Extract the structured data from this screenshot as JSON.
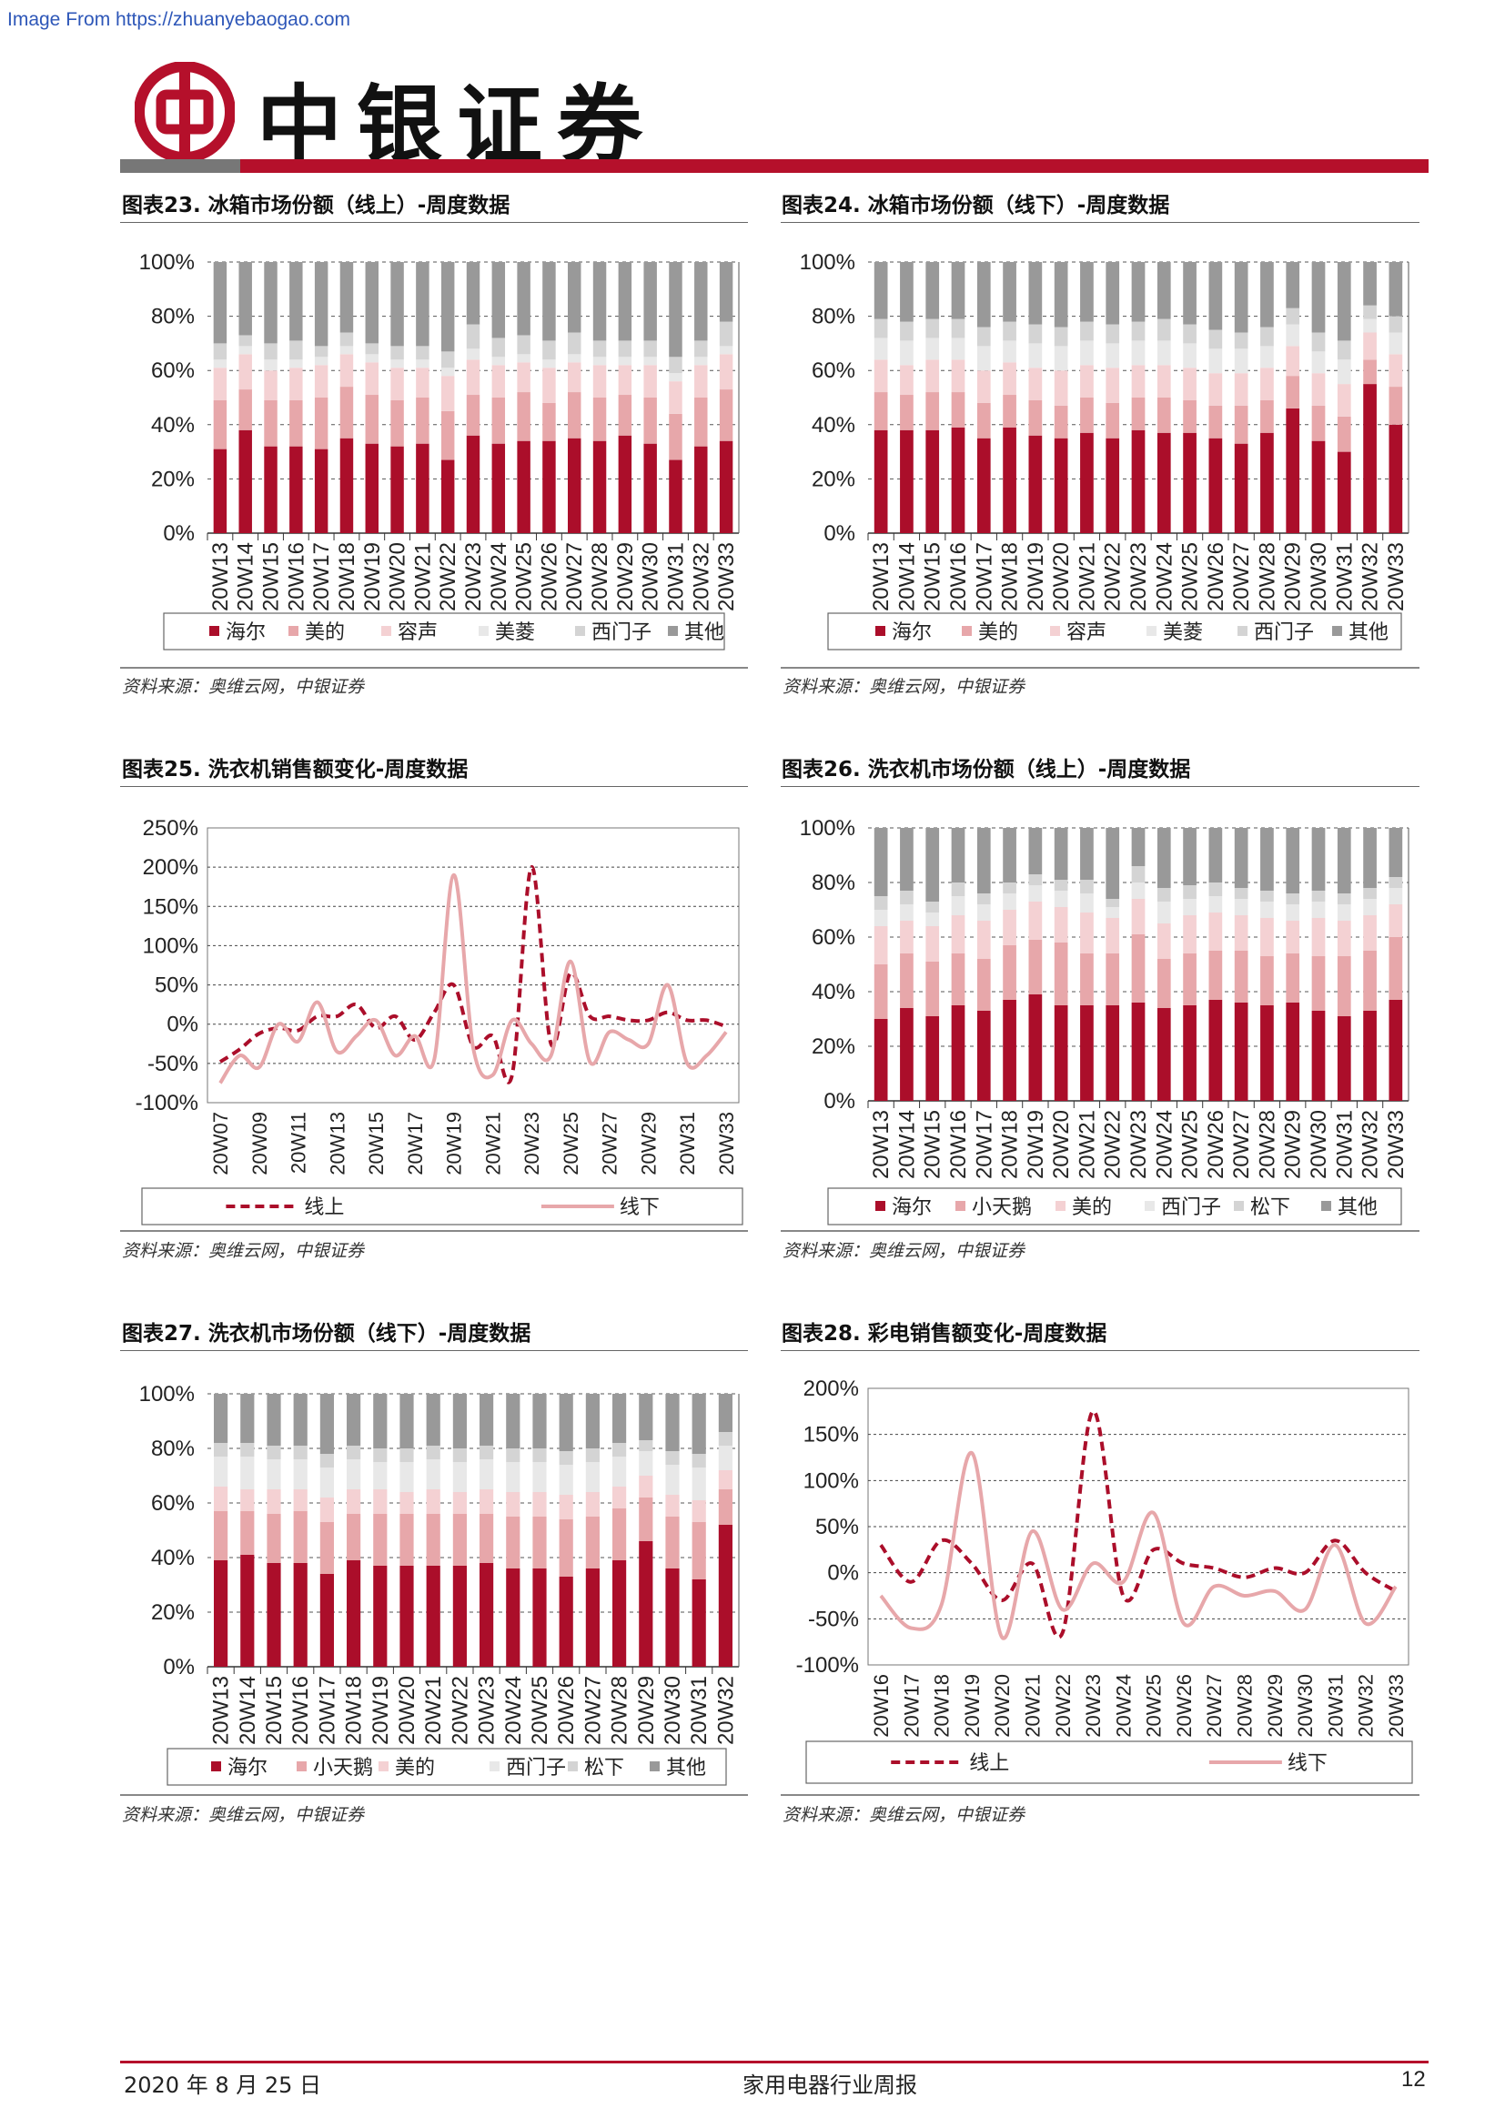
{
  "header": {
    "source_note": "Image From https://zhuanyebaogao.com",
    "brand": "中银证券"
  },
  "footer": {
    "date": "2020 年 8 月 25 日",
    "report": "家用电器行业周报",
    "page": "12"
  },
  "colors": {
    "dark_red": "#ab0e2a",
    "rose": "#e7a7aa",
    "pale_pink": "#f4d1d3",
    "light_gray": "#e8e8e8",
    "mid_gray": "#d4d4d4",
    "dark_gray": "#999999",
    "brand_red": "#b5102b"
  },
  "charts": [
    {
      "title": "图表23. 冰箱市场份额（线上）-周度数据",
      "source": "资料来源：奥维云网，中银证券",
      "chart_data": {
        "type": "bar",
        "stacked": true,
        "categories": [
          "20W13",
          "20W14",
          "20W15",
          "20W16",
          "20W17",
          "20W18",
          "20W19",
          "20W20",
          "20W21",
          "20W22",
          "20W23",
          "20W24",
          "20W25",
          "20W26",
          "20W27",
          "20W28",
          "20W29",
          "20W30",
          "20W31",
          "20W32",
          "20W33"
        ],
        "yticks": [
          "0%",
          "20%",
          "40%",
          "60%",
          "80%",
          "100%"
        ],
        "ylim": [
          0,
          100
        ],
        "series": [
          {
            "name": "海尔",
            "color": "#ab0e2a",
            "values": [
              31,
              38,
              32,
              32,
              31,
              35,
              33,
              32,
              33,
              27,
              36,
              33,
              34,
              34,
              35,
              34,
              36,
              33,
              27,
              32,
              34
            ]
          },
          {
            "name": "美的",
            "color": "#e7a7aa",
            "values": [
              18,
              15,
              17,
              17,
              19,
              19,
              18,
              17,
              17,
              18,
              15,
              17,
              18,
              14,
              17,
              16,
              15,
              17,
              17,
              18,
              19
            ]
          },
          {
            "name": "容声",
            "color": "#f4d1d3",
            "values": [
              12,
              13,
              11,
              12,
              12,
              12,
              12,
              12,
              11,
              13,
              13,
              12,
              11,
              13,
              11,
              12,
              11,
              12,
              12,
              12,
              13
            ]
          },
          {
            "name": "美菱",
            "color": "#e8e8e8",
            "values": [
              3,
              3,
              4,
              3,
              3,
              3,
              3,
              3,
              3,
              3,
              4,
              3,
              3,
              3,
              3,
              3,
              3,
              3,
              3,
              3,
              3
            ]
          },
          {
            "name": "西门子",
            "color": "#d4d4d4",
            "values": [
              6,
              4,
              6,
              7,
              4,
              5,
              4,
              5,
              5,
              6,
              9,
              7,
              7,
              7,
              8,
              6,
              6,
              6,
              6,
              6,
              9
            ]
          },
          {
            "name": "其他",
            "color": "#999999",
            "values": [
              30,
              27,
              30,
              29,
              31,
              26,
              30,
              31,
              31,
              33,
              23,
              28,
              27,
              29,
              26,
              29,
              29,
              29,
              35,
              29,
              22
            ]
          }
        ]
      }
    },
    {
      "title": "图表24. 冰箱市场份额（线下）-周度数据",
      "source": "资料来源：奥维云网，中银证券",
      "chart_data": {
        "type": "bar",
        "stacked": true,
        "categories": [
          "20W13",
          "20W14",
          "20W15",
          "20W16",
          "20W17",
          "20W18",
          "20W19",
          "20W20",
          "20W21",
          "20W22",
          "20W23",
          "20W24",
          "20W25",
          "20W26",
          "20W27",
          "20W28",
          "20W29",
          "20W30",
          "20W31",
          "20W32",
          "20W33"
        ],
        "yticks": [
          "0%",
          "20%",
          "40%",
          "60%",
          "80%",
          "100%"
        ],
        "ylim": [
          0,
          100
        ],
        "series": [
          {
            "name": "海尔",
            "color": "#ab0e2a",
            "values": [
              38,
              38,
              38,
              39,
              35,
              39,
              36,
              35,
              37,
              35,
              38,
              37,
              37,
              35,
              33,
              37,
              46,
              34,
              30,
              55,
              40
            ]
          },
          {
            "name": "美的",
            "color": "#e7a7aa",
            "values": [
              14,
              13,
              14,
              13,
              13,
              12,
              13,
              12,
              13,
              13,
              12,
              13,
              12,
              12,
              14,
              12,
              12,
              13,
              13,
              9,
              14
            ]
          },
          {
            "name": "容声",
            "color": "#f4d1d3",
            "values": [
              12,
              11,
              12,
              12,
              12,
              12,
              12,
              13,
              12,
              13,
              12,
              12,
              12,
              12,
              12,
              12,
              11,
              12,
              12,
              10,
              12
            ]
          },
          {
            "name": "美菱",
            "color": "#e8e8e8",
            "values": [
              8,
              9,
              8,
              8,
              9,
              8,
              9,
              9,
              9,
              9,
              9,
              9,
              9,
              9,
              9,
              8,
              8,
              8,
              9,
              5,
              8
            ]
          },
          {
            "name": "西门子",
            "color": "#d4d4d4",
            "values": [
              7,
              7,
              7,
              7,
              7,
              7,
              7,
              7,
              7,
              7,
              7,
              8,
              7,
              7,
              6,
              7,
              6,
              7,
              7,
              5,
              6
            ]
          },
          {
            "name": "其他",
            "color": "#999999",
            "values": [
              21,
              22,
              21,
              21,
              24,
              22,
              23,
              24,
              22,
              23,
              22,
              21,
              23,
              25,
              26,
              24,
              17,
              26,
              29,
              16,
              20
            ]
          }
        ]
      }
    },
    {
      "title": "图表25. 洗衣机销售额变化-周度数据",
      "source": "资料来源：奥维云网，中银证券",
      "chart_data": {
        "type": "line",
        "x": [
          "20W07",
          "20W08",
          "20W09",
          "20W10",
          "20W11",
          "20W12",
          "20W13",
          "20W14",
          "20W15",
          "20W16",
          "20W17",
          "20W18",
          "20W19",
          "20W20",
          "20W21",
          "20W22",
          "20W23",
          "20W24",
          "20W25",
          "20W26",
          "20W27",
          "20W28",
          "20W29",
          "20W30",
          "20W31",
          "20W32",
          "20W33"
        ],
        "xticks": [
          "20W07",
          "20W09",
          "20W11",
          "20W13",
          "20W15",
          "20W17",
          "20W19",
          "20W21",
          "20W23",
          "20W25",
          "20W27",
          "20W29",
          "20W31",
          "20W33"
        ],
        "yticks": [
          "-100%",
          "-50%",
          "0%",
          "50%",
          "100%",
          "150%",
          "200%",
          "250%"
        ],
        "ylim": [
          -100,
          250
        ],
        "series": [
          {
            "name": "线上",
            "style": "dashed",
            "color": "#ab0e2a",
            "values": [
              -48,
              -32,
              -12,
              -5,
              -8,
              10,
              10,
              25,
              -5,
              10,
              -20,
              15,
              50,
              -28,
              -15,
              -65,
              200,
              -25,
              65,
              10,
              10,
              5,
              5,
              15,
              5,
              5,
              -3
            ]
          },
          {
            "name": "线下",
            "style": "solid",
            "color": "#e7a7aa",
            "values": [
              -75,
              -40,
              -55,
              0,
              -22,
              28,
              -35,
              -15,
              5,
              -40,
              -15,
              -45,
              190,
              -30,
              -65,
              5,
              -25,
              -40,
              80,
              -48,
              -10,
              -20,
              -25,
              50,
              -50,
              -40,
              -10
            ]
          }
        ]
      }
    },
    {
      "title": "图表26. 洗衣机市场份额（线上）-周度数据",
      "source": "资料来源：奥维云网，中银证券",
      "chart_data": {
        "type": "bar",
        "stacked": true,
        "categories": [
          "20W13",
          "20W14",
          "20W15",
          "20W16",
          "20W17",
          "20W18",
          "20W19",
          "20W20",
          "20W21",
          "20W22",
          "20W23",
          "20W24",
          "20W25",
          "20W26",
          "20W27",
          "20W28",
          "20W29",
          "20W30",
          "20W31",
          "20W32",
          "20W33"
        ],
        "yticks": [
          "0%",
          "20%",
          "40%",
          "60%",
          "80%",
          "100%"
        ],
        "ylim": [
          0,
          100
        ],
        "series": [
          {
            "name": "海尔",
            "color": "#ab0e2a",
            "values": [
              30,
              34,
              31,
              35,
              33,
              37,
              39,
              35,
              35,
              35,
              36,
              34,
              35,
              37,
              36,
              35,
              36,
              33,
              31,
              33,
              37
            ]
          },
          {
            "name": "小天鹅",
            "color": "#e7a7aa",
            "values": [
              20,
              20,
              20,
              19,
              19,
              20,
              20,
              23,
              19,
              19,
              25,
              18,
              19,
              18,
              19,
              18,
              18,
              20,
              22,
              22,
              23
            ]
          },
          {
            "name": "美的",
            "color": "#f4d1d3",
            "values": [
              14,
              12,
              13,
              14,
              14,
              13,
              14,
              13,
              15,
              13,
              13,
              13,
              14,
              14,
              13,
              14,
              12,
              14,
              13,
              13,
              12
            ]
          },
          {
            "name": "西门子",
            "color": "#e8e8e8",
            "values": [
              6,
              6,
              5,
              7,
              6,
              6,
              6,
              6,
              7,
              4,
              6,
              8,
              6,
              6,
              6,
              6,
              6,
              6,
              6,
              6,
              6
            ]
          },
          {
            "name": "松下",
            "color": "#d4d4d4",
            "values": [
              5,
              5,
              4,
              5,
              4,
              4,
              4,
              4,
              5,
              3,
              6,
              5,
              5,
              5,
              4,
              4,
              4,
              4,
              4,
              4,
              4
            ]
          },
          {
            "name": "其他",
            "color": "#999999",
            "values": [
              25,
              23,
              27,
              20,
              24,
              20,
              17,
              19,
              19,
              26,
              14,
              22,
              21,
              20,
              22,
              23,
              24,
              23,
              24,
              22,
              18
            ]
          }
        ]
      }
    },
    {
      "title": "图表27. 洗衣机市场份额（线下）-周度数据",
      "source": "资料来源：奥维云网，中银证券",
      "chart_data": {
        "type": "bar",
        "stacked": true,
        "categories": [
          "20W13",
          "20W14",
          "20W15",
          "20W16",
          "20W17",
          "20W18",
          "20W19",
          "20W20",
          "20W21",
          "20W22",
          "20W23",
          "20W24",
          "20W25",
          "20W26",
          "20W27",
          "20W28",
          "20W29",
          "20W30",
          "20W31",
          "20W32"
        ],
        "yticks": [
          "0%",
          "20%",
          "40%",
          "60%",
          "80%",
          "100%"
        ],
        "ylim": [
          0,
          100
        ],
        "series": [
          {
            "name": "海尔",
            "color": "#ab0e2a",
            "values": [
              39,
              41,
              38,
              38,
              34,
              39,
              37,
              37,
              37,
              37,
              38,
              36,
              36,
              33,
              36,
              39,
              46,
              36,
              32,
              52
            ]
          },
          {
            "name": "小天鹅",
            "color": "#e7a7aa",
            "values": [
              18,
              16,
              18,
              19,
              19,
              17,
              19,
              19,
              19,
              19,
              18,
              19,
              19,
              21,
              19,
              19,
              16,
              19,
              21,
              13
            ]
          },
          {
            "name": "美的",
            "color": "#f4d1d3",
            "values": [
              9,
              8,
              9,
              8,
              9,
              9,
              9,
              8,
              9,
              8,
              9,
              9,
              9,
              9,
              9,
              8,
              8,
              8,
              8,
              7
            ]
          },
          {
            "name": "西门子",
            "color": "#e8e8e8",
            "values": [
              11,
              12,
              11,
              11,
              11,
              11,
              10,
              11,
              11,
              11,
              11,
              11,
              11,
              11,
              11,
              11,
              9,
              11,
              12,
              9
            ]
          },
          {
            "name": "松下",
            "color": "#d4d4d4",
            "values": [
              5,
              5,
              5,
              5,
              5,
              5,
              5,
              5,
              5,
              5,
              5,
              5,
              5,
              5,
              5,
              5,
              4,
              5,
              5,
              5
            ]
          },
          {
            "name": "其他",
            "color": "#999999",
            "values": [
              18,
              18,
              19,
              19,
              22,
              19,
              20,
              20,
              19,
              20,
              19,
              20,
              20,
              21,
              20,
              18,
              17,
              21,
              22,
              14
            ]
          }
        ]
      }
    },
    {
      "title": "图表28. 彩电销售额变化-周度数据",
      "source": "资料来源：奥维云网，中银证券",
      "chart_data": {
        "type": "line",
        "x": [
          "20W16",
          "20W17",
          "20W18",
          "20W19",
          "20W20",
          "20W21",
          "20W22",
          "20W23",
          "20W24",
          "20W25",
          "20W26",
          "20W27",
          "20W28",
          "20W29",
          "20W30",
          "20W31",
          "20W32",
          "20W33"
        ],
        "xticks": [
          "20W16",
          "20W17",
          "20W18",
          "20W19",
          "20W20",
          "20W21",
          "20W22",
          "20W23",
          "20W24",
          "20W25",
          "20W26",
          "20W27",
          "20W28",
          "20W29",
          "20W30",
          "20W31",
          "20W32",
          "20W33"
        ],
        "yticks": [
          "-100%",
          "-50%",
          "0%",
          "50%",
          "100%",
          "150%",
          "200%"
        ],
        "ylim": [
          -100,
          200
        ],
        "series": [
          {
            "name": "线上",
            "style": "dashed",
            "color": "#ab0e2a",
            "values": [
              30,
              -10,
              35,
              10,
              -30,
              10,
              -65,
              175,
              -25,
              25,
              10,
              5,
              -5,
              5,
              0,
              35,
              0,
              -20
            ]
          },
          {
            "name": "线下",
            "style": "solid",
            "color": "#e7a7aa",
            "values": [
              -25,
              -60,
              -35,
              130,
              -70,
              45,
              -40,
              10,
              -10,
              65,
              -55,
              -15,
              -25,
              -20,
              -40,
              30,
              -55,
              -15
            ]
          }
        ]
      }
    }
  ]
}
